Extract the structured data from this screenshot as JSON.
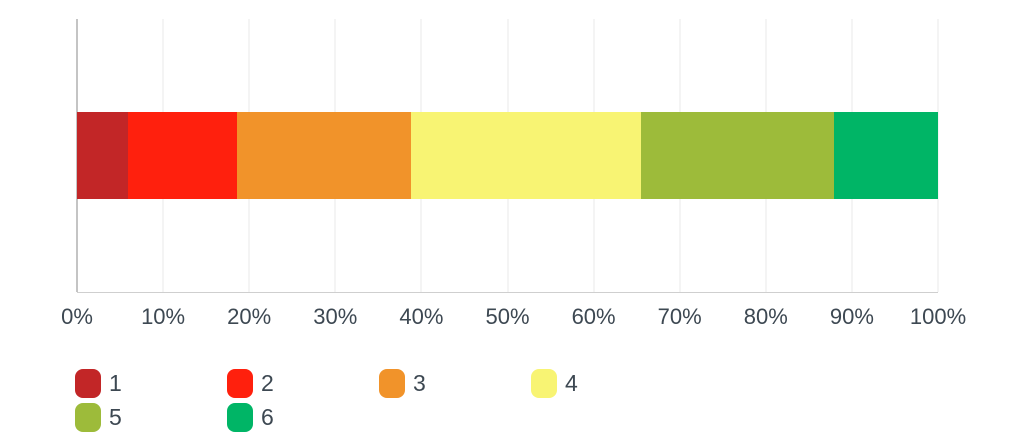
{
  "styles": {
    "text_color": "#3d4852",
    "grid_color": "#e9e9e9",
    "axis_line_color": "#c4c4c4",
    "plot_border_color": "#cfcfcf",
    "background": "#ffffff"
  },
  "chart_data": {
    "type": "bar",
    "stacked": true,
    "orientation": "horizontal",
    "title": "",
    "xlabel": "",
    "ylabel": "",
    "xlim": [
      0,
      100
    ],
    "x_tick_unit": "percent",
    "x_ticks": [
      "0%",
      "10%",
      "20%",
      "30%",
      "40%",
      "50%",
      "60%",
      "70%",
      "80%",
      "90%",
      "100%"
    ],
    "grid": true,
    "legend_position": "bottom",
    "legend_columns": 4,
    "series": [
      {
        "name": "1",
        "value": 5.9,
        "color": "#c22627"
      },
      {
        "name": "2",
        "value": 12.7,
        "color": "#ff200d"
      },
      {
        "name": "3",
        "value": 20.2,
        "color": "#f1932a"
      },
      {
        "name": "4",
        "value": 26.7,
        "color": "#f8f473"
      },
      {
        "name": "5",
        "value": 22.4,
        "color": "#9dbb3a"
      },
      {
        "name": "6",
        "value": 12.1,
        "color": "#00b566"
      }
    ]
  }
}
